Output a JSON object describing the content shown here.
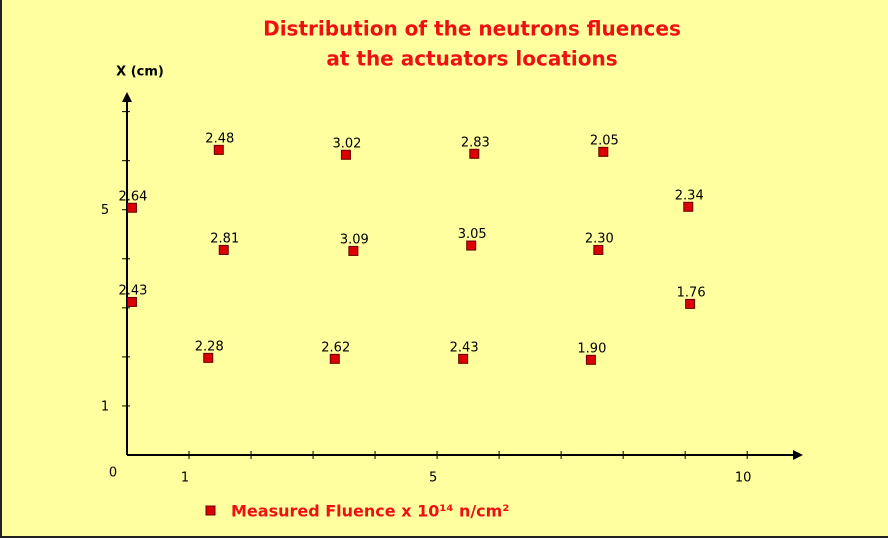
{
  "chart_data": {
    "type": "scatter",
    "title": [
      "Distribution of the neutrons fluences",
      "at the actuators locations"
    ],
    "y_label": "X (cm)",
    "xlim": [
      0,
      10.9
    ],
    "ylim": [
      0,
      7.4
    ],
    "xticks": [
      0,
      1,
      5,
      10
    ],
    "xminorticks": [
      2,
      3,
      4,
      6,
      7,
      8,
      9
    ],
    "yticks": [
      1,
      5
    ],
    "yminorticks": [
      2,
      3,
      4,
      6,
      7
    ],
    "series": [
      {
        "name": "Measured Fluence x 10¹⁴ n/cm²",
        "color": "#dd0000",
        "x": [
          1.48,
          3.53,
          5.6,
          7.68,
          0.08,
          9.05,
          1.56,
          3.65,
          5.55,
          7.6,
          0.08,
          9.08,
          1.31,
          3.35,
          5.42,
          7.48
        ],
        "y": [
          6.22,
          6.12,
          6.14,
          6.18,
          5.04,
          5.06,
          4.18,
          4.16,
          4.27,
          4.18,
          3.12,
          3.08,
          1.98,
          1.96,
          1.96,
          1.94
        ],
        "values": [
          2.48,
          3.02,
          2.83,
          2.05,
          2.64,
          2.34,
          2.81,
          3.09,
          3.05,
          2.3,
          2.43,
          1.76,
          2.28,
          2.62,
          2.43,
          1.9
        ],
        "value_labels": [
          "2.48",
          "3.02",
          "2.83",
          "2.05",
          "2.64",
          "2.34",
          "2.81",
          "3.09",
          "3.05",
          "2.30",
          "2.43",
          "1.76",
          "2.28",
          "2.62",
          "2.43",
          "1.90"
        ]
      }
    ]
  }
}
